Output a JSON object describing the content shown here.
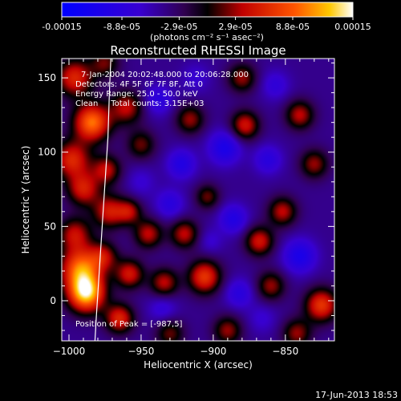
{
  "chart_data": {
    "type": "heatmap",
    "title": "Reconstructed RHESSI Image",
    "xlabel": "Heliocentric X (arcsec)",
    "ylabel": "Heliocentric Y (arcsec)",
    "xlim": [
      -1005,
      -816
    ],
    "ylim": [
      -27,
      163
    ],
    "x_ticks": [
      -1000,
      -950,
      -900,
      -850
    ],
    "y_ticks": [
      0,
      50,
      100,
      150
    ],
    "colorbar": {
      "range": [
        -0.00015,
        0.00015
      ],
      "tick_values": [
        -0.00015,
        -8.8e-05,
        -2.9e-05,
        2.9e-05,
        8.8e-05,
        0.00015
      ],
      "tick_labels": [
        "-0.00015",
        "-8.8e-05",
        "-2.9e-05",
        "2.9e-05",
        "8.8e-05",
        "0.00015"
      ],
      "unit_label": "(photons cm⁻² s⁻¹ asec⁻²)"
    },
    "annotations": [
      "7-Jan-2004 20:02:48.000 to 20:06:28.000",
      "Detectors: 4F 5F 6F 7F 8F, Att 0",
      "Energy Range: 25.0 - 50.0 keV",
      "Clean     Total counts: 3.15E+03"
    ],
    "peak_label": "Position of Peak = [-987,5]",
    "peak_position": [
      -987,
      5
    ],
    "limb_points": [
      [
        -971,
        163
      ],
      [
        -972,
        140
      ],
      [
        -973,
        110
      ],
      [
        -975,
        80
      ],
      [
        -977,
        50
      ],
      [
        -979,
        20
      ],
      [
        -981,
        -10
      ],
      [
        -982,
        -27
      ]
    ],
    "blobs": [
      {
        "x": -988,
        "y": 5,
        "v": 0.00015,
        "s": 9
      },
      {
        "x": -992,
        "y": 22,
        "v": 0.00011,
        "s": 10
      },
      {
        "x": -984,
        "y": 120,
        "v": 0.00012,
        "s": 9
      },
      {
        "x": -996,
        "y": 150,
        "v": 8e-05,
        "s": 9
      },
      {
        "x": -998,
        "y": 95,
        "v": 8e-05,
        "s": 9
      },
      {
        "x": -990,
        "y": 75,
        "v": 7e-05,
        "s": 8
      },
      {
        "x": -996,
        "y": 45,
        "v": 6e-05,
        "s": 8
      },
      {
        "x": -972,
        "y": 60,
        "v": 7e-05,
        "s": 8
      },
      {
        "x": -974,
        "y": 88,
        "v": 6e-05,
        "s": 7
      },
      {
        "x": -976,
        "y": 30,
        "v": 5e-05,
        "s": 7
      },
      {
        "x": -960,
        "y": 130,
        "v": 6e-05,
        "s": 8
      },
      {
        "x": -950,
        "y": 105,
        "v": 4e-05,
        "s": 7
      },
      {
        "x": -958,
        "y": 18,
        "v": 7e-05,
        "s": 7
      },
      {
        "x": -958,
        "y": 60,
        "v": 5e-05,
        "s": 6
      },
      {
        "x": -945,
        "y": 45,
        "v": 6e-05,
        "s": 7
      },
      {
        "x": -920,
        "y": 45,
        "v": 6e-05,
        "s": 7
      },
      {
        "x": -934,
        "y": 12,
        "v": 6e-05,
        "s": 7
      },
      {
        "x": -916,
        "y": 122,
        "v": 5e-05,
        "s": 7
      },
      {
        "x": -904,
        "y": 70,
        "v": 4e-05,
        "s": 6
      },
      {
        "x": -906,
        "y": 16,
        "v": 9e-05,
        "s": 8
      },
      {
        "x": -878,
        "y": 118,
        "v": 7e-05,
        "s": 7
      },
      {
        "x": -880,
        "y": 150,
        "v": 5e-05,
        "s": 7
      },
      {
        "x": -868,
        "y": 40,
        "v": 7e-05,
        "s": 7
      },
      {
        "x": -852,
        "y": 60,
        "v": 6e-05,
        "s": 7
      },
      {
        "x": -860,
        "y": 10,
        "v": 5e-05,
        "s": 7
      },
      {
        "x": -840,
        "y": 125,
        "v": 6e-05,
        "s": 7
      },
      {
        "x": -830,
        "y": 92,
        "v": 5e-05,
        "s": 7
      },
      {
        "x": -825,
        "y": -3,
        "v": 9e-05,
        "s": 8
      },
      {
        "x": -842,
        "y": -22,
        "v": 5e-05,
        "s": 7
      },
      {
        "x": -965,
        "y": -12,
        "v": 8e-05,
        "s": 7
      },
      {
        "x": -930,
        "y": -22,
        "v": 4e-05,
        "s": 7
      },
      {
        "x": -890,
        "y": -20,
        "v": 5e-05,
        "s": 7
      },
      {
        "x": -975,
        "y": 160,
        "v": 4e-05,
        "s": 7
      },
      {
        "x": -938,
        "y": 135,
        "v": -6e-05,
        "s": 7
      },
      {
        "x": -922,
        "y": 92,
        "v": -7e-05,
        "s": 7
      },
      {
        "x": -892,
        "y": 103,
        "v": -8e-05,
        "s": 8
      },
      {
        "x": -862,
        "y": 95,
        "v": -6e-05,
        "s": 7
      },
      {
        "x": -857,
        "y": 145,
        "v": -5e-05,
        "s": 7
      },
      {
        "x": -930,
        "y": 65,
        "v": -6e-05,
        "s": 7
      },
      {
        "x": -886,
        "y": 55,
        "v": -7e-05,
        "s": 7
      },
      {
        "x": -902,
        "y": 40,
        "v": -4e-05,
        "s": 6
      },
      {
        "x": -840,
        "y": 30,
        "v": -8e-05,
        "s": 8
      },
      {
        "x": -882,
        "y": 5,
        "v": -6e-05,
        "s": 7
      },
      {
        "x": -935,
        "y": -5,
        "v": -5e-05,
        "s": 7
      },
      {
        "x": -950,
        "y": 80,
        "v": -4e-05,
        "s": 7
      },
      {
        "x": -912,
        "y": 150,
        "v": -4e-05,
        "s": 7
      },
      {
        "x": -866,
        "y": -12,
        "v": -4e-05,
        "s": 7
      }
    ]
  },
  "footer": {
    "date": "17-Jun-2013 18:53"
  }
}
